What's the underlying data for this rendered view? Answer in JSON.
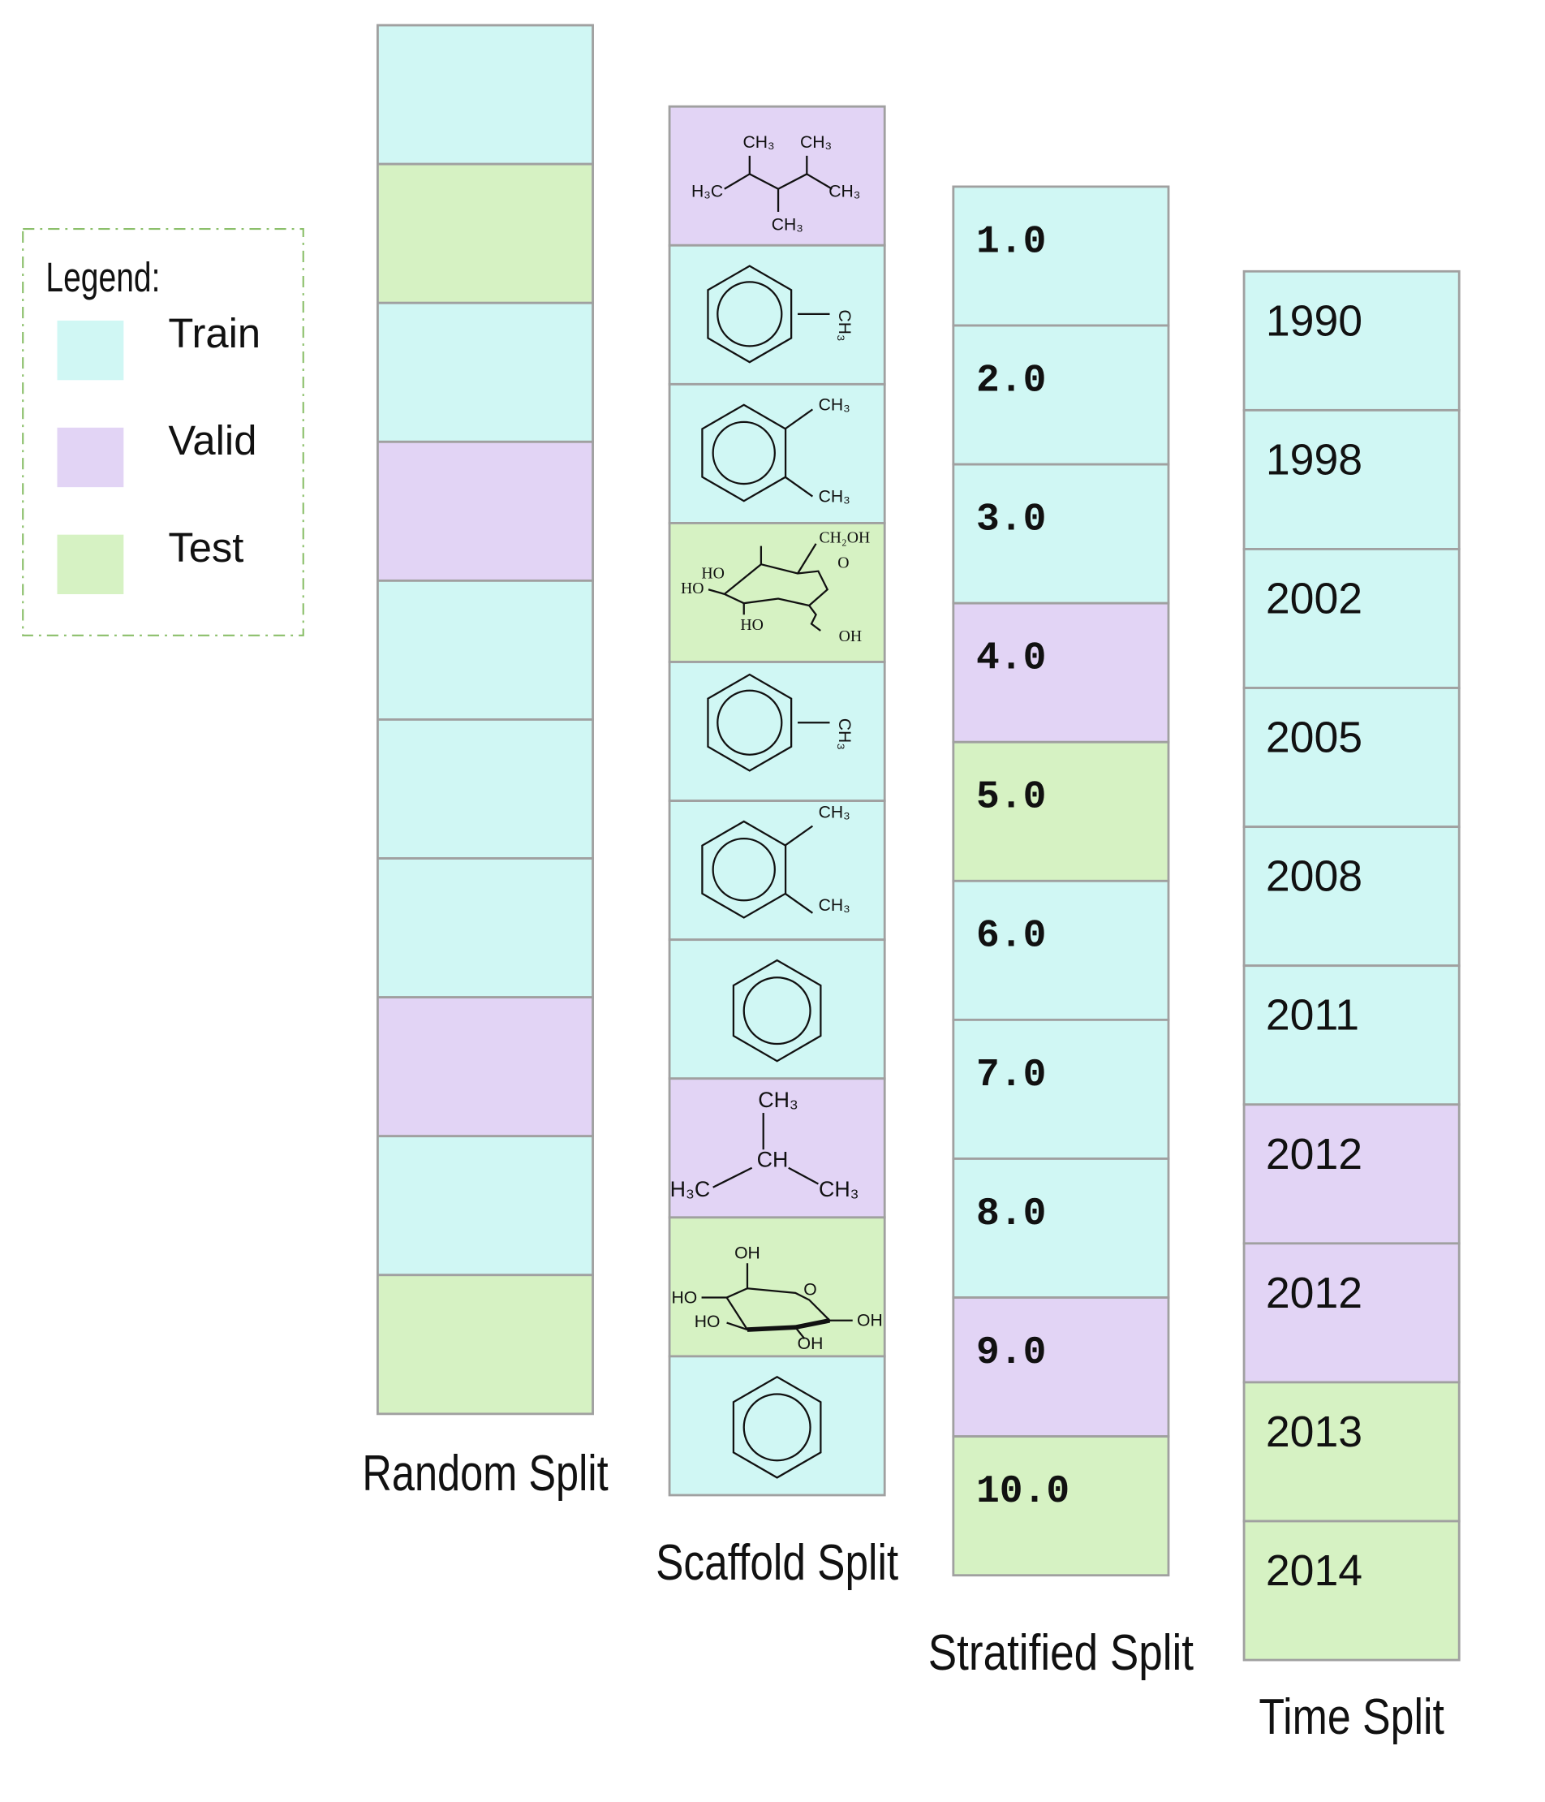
{
  "legend": {
    "title": "Legend:",
    "items": [
      {
        "label": "Train",
        "color": "#d0f7f4"
      },
      {
        "label": "Valid",
        "color": "#e2d4f5"
      },
      {
        "label": "Test",
        "color": "#d6f2c3"
      }
    ]
  },
  "columns": [
    {
      "title": "Random Split",
      "cells": [
        {
          "split": "Train"
        },
        {
          "split": "Test"
        },
        {
          "split": "Train"
        },
        {
          "split": "Valid"
        },
        {
          "split": "Train"
        },
        {
          "split": "Train"
        },
        {
          "split": "Train"
        },
        {
          "split": "Valid"
        },
        {
          "split": "Train"
        },
        {
          "split": "Test"
        }
      ]
    },
    {
      "title": "Scaffold Split",
      "cells": [
        {
          "split": "Valid",
          "labels": [
            "CH₃",
            "CH₃",
            "H₃C",
            "CH₃",
            "CH₃"
          ]
        },
        {
          "split": "Train",
          "labels": [
            "CH₃"
          ]
        },
        {
          "split": "Train",
          "labels": [
            "CH₃",
            "CH₃"
          ]
        },
        {
          "split": "Test",
          "labels": [
            "CH₂OH",
            "O",
            "HO",
            "HO",
            "HO",
            "OH"
          ]
        },
        {
          "split": "Train",
          "labels": [
            "CH₃"
          ]
        },
        {
          "split": "Train",
          "labels": [
            "CH₃",
            "CH₃"
          ]
        },
        {
          "split": "Train"
        },
        {
          "split": "Valid",
          "labels": [
            "CH₃",
            "CH",
            "H₃C",
            "CH₃"
          ]
        },
        {
          "split": "Test",
          "labels": [
            "OH",
            "O",
            "HO",
            "HO",
            "OH",
            "OH"
          ]
        },
        {
          "split": "Train"
        }
      ]
    },
    {
      "title": "Stratified Split",
      "cells": [
        {
          "split": "Train",
          "label": "1.0"
        },
        {
          "split": "Train",
          "label": "2.0"
        },
        {
          "split": "Train",
          "label": "3.0"
        },
        {
          "split": "Valid",
          "label": "4.0"
        },
        {
          "split": "Test",
          "label": "5.0"
        },
        {
          "split": "Train",
          "label": "6.0"
        },
        {
          "split": "Train",
          "label": "7.0"
        },
        {
          "split": "Train",
          "label": "8.0"
        },
        {
          "split": "Valid",
          "label": "9.0"
        },
        {
          "split": "Test",
          "label": "10.0"
        }
      ]
    },
    {
      "title": "Time Split",
      "cells": [
        {
          "split": "Train",
          "label": "1990"
        },
        {
          "split": "Train",
          "label": "1998"
        },
        {
          "split": "Train",
          "label": "2002"
        },
        {
          "split": "Train",
          "label": "2005"
        },
        {
          "split": "Train",
          "label": "2008"
        },
        {
          "split": "Train",
          "label": "2011"
        },
        {
          "split": "Valid",
          "label": "2012"
        },
        {
          "split": "Valid",
          "label": "2012"
        },
        {
          "split": "Test",
          "label": "2013"
        },
        {
          "split": "Test",
          "label": "2014"
        }
      ]
    }
  ]
}
